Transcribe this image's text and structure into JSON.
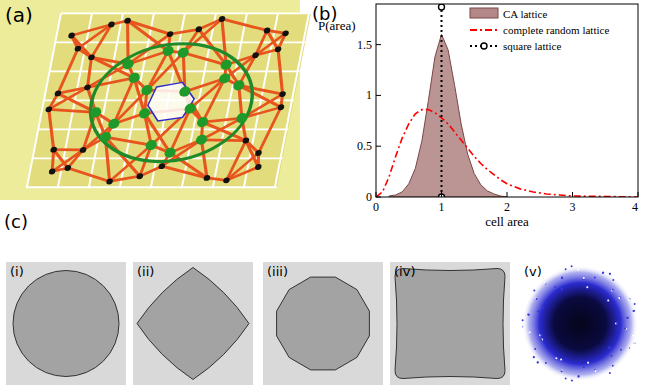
{
  "panel_labels": {
    "a": "(a)",
    "b": "(b)",
    "c": "(c)"
  },
  "subpanel_labels": [
    "(i)",
    "(ii)",
    "(iii)",
    "(iv)",
    "(v)"
  ],
  "chart_data": {
    "type": "line",
    "x_label": "cell area",
    "y_label": "P(area)",
    "xlim": [
      0,
      4
    ],
    "ylim": [
      0,
      1.9
    ],
    "xticks": [
      0,
      1,
      2,
      3,
      4
    ],
    "yticks": [
      0,
      0.5,
      1,
      1.5
    ],
    "legend": "upper right",
    "grid": false,
    "series": [
      {
        "name": "CA lattice",
        "type": "area",
        "color": "#b48888",
        "x": [
          0.2,
          0.3,
          0.4,
          0.5,
          0.6,
          0.7,
          0.8,
          0.9,
          1.0,
          1.1,
          1.2,
          1.3,
          1.4,
          1.5,
          1.6,
          1.7,
          1.8,
          1.9,
          2.0
        ],
        "values": [
          0.01,
          0.02,
          0.05,
          0.13,
          0.28,
          0.55,
          0.95,
          1.38,
          1.6,
          1.45,
          1.1,
          0.72,
          0.42,
          0.23,
          0.12,
          0.06,
          0.03,
          0.01,
          0
        ]
      },
      {
        "name": "complete random lattice",
        "type": "line",
        "color": "#ff0000",
        "line_style": "dashdot",
        "x": [
          0,
          0.1,
          0.2,
          0.3,
          0.4,
          0.5,
          0.6,
          0.7,
          0.8,
          0.9,
          1.0,
          1.1,
          1.2,
          1.3,
          1.4,
          1.5,
          1.6,
          1.7,
          1.8,
          1.9,
          2.0,
          2.2,
          2.4,
          2.6,
          2.8,
          3.0,
          3.5,
          4.0
        ],
        "values": [
          0,
          0.05,
          0.2,
          0.4,
          0.58,
          0.72,
          0.82,
          0.86,
          0.86,
          0.83,
          0.78,
          0.72,
          0.64,
          0.56,
          0.48,
          0.4,
          0.33,
          0.27,
          0.22,
          0.17,
          0.13,
          0.08,
          0.05,
          0.03,
          0.02,
          0.01,
          0.005,
          0
        ]
      },
      {
        "name": "square lattice",
        "type": "line",
        "color": "#000000",
        "line_style": "dotted",
        "marker": "circle",
        "x": [
          1,
          1
        ],
        "values": [
          0,
          1.87
        ]
      }
    ]
  }
}
